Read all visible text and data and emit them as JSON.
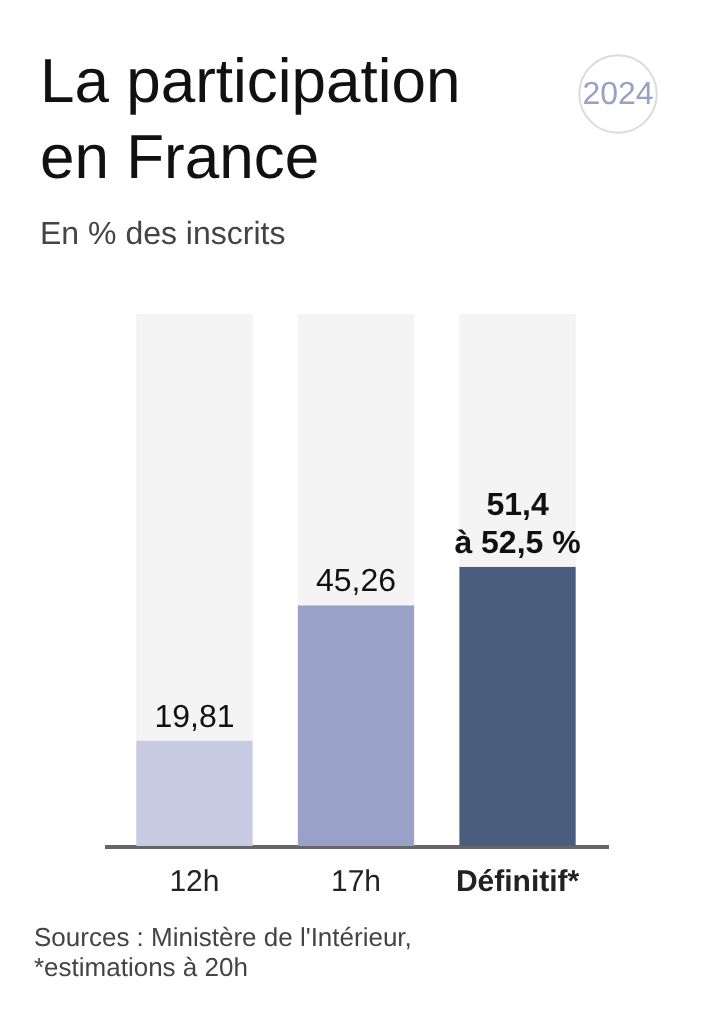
{
  "chart_data": {
    "type": "bar",
    "title": "La participation en France",
    "subtitle": "En % des inscrits",
    "categories": [
      "12h",
      "17h",
      "Définitif*"
    ],
    "series": [
      {
        "colors": [
          "#c8cce3",
          "#9aa1c8",
          "#4b5d7c"
        ],
        "values": [
          19.81,
          45.26,
          52.5
        ],
        "value_labels": [
          "19,81",
          "45,26",
          "51,4\nà 52,5 %"
        ]
      },
      {
        "color": "#f4f4f4",
        "values": [
          80.19,
          54.74,
          47.5
        ]
      }
    ],
    "stacked": true,
    "ylim": [
      0,
      100
    ],
    "tick_labels": "x",
    "grid": false,
    "annotations": [
      "2024",
      "Sources : Ministère de l'Intérieur,\n*estimations à 20h"
    ]
  }
}
